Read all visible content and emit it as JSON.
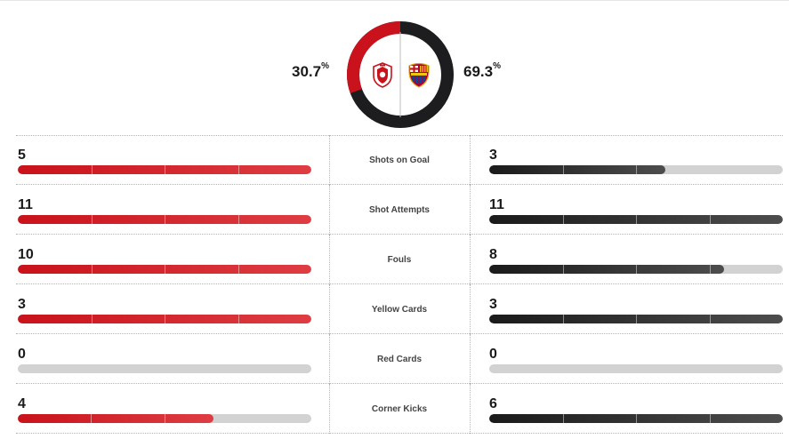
{
  "colors": {
    "home": "#c9121b",
    "away": "#1d1d1f",
    "track": "#d2d2d2"
  },
  "possession": {
    "home_value": "30.7",
    "away_value": "69.3",
    "unit": "%",
    "home_fraction": 0.307,
    "away_fraction": 0.693,
    "home_logo_icon": "antwerp-crest-icon",
    "away_logo_icon": "barcelona-crest-icon"
  },
  "stats": [
    {
      "label": "Shots on Goal",
      "home": "5",
      "away": "3",
      "home_fill": 1.0,
      "away_fill": 0.6
    },
    {
      "label": "Shot Attempts",
      "home": "11",
      "away": "11",
      "home_fill": 1.0,
      "away_fill": 1.0
    },
    {
      "label": "Fouls",
      "home": "10",
      "away": "8",
      "home_fill": 1.0,
      "away_fill": 0.8
    },
    {
      "label": "Yellow Cards",
      "home": "3",
      "away": "3",
      "home_fill": 1.0,
      "away_fill": 1.0
    },
    {
      "label": "Red Cards",
      "home": "0",
      "away": "0",
      "home_fill": 0,
      "away_fill": 0
    },
    {
      "label": "Corner Kicks",
      "home": "4",
      "away": "6",
      "home_fill": 0.667,
      "away_fill": 1.0
    }
  ]
}
